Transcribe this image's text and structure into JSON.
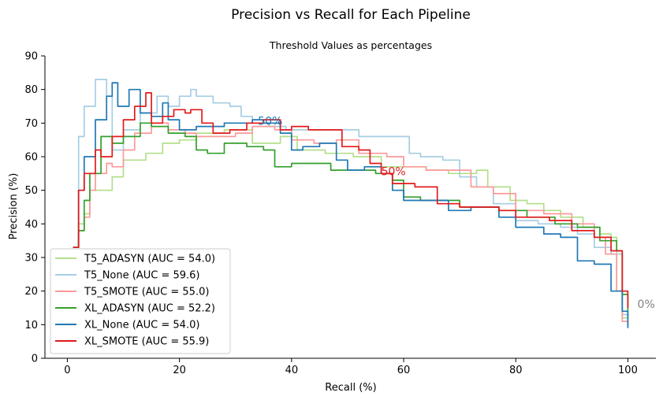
{
  "chart_data": {
    "type": "line",
    "title": "Precision vs Recall for Each Pipeline",
    "subtitle": "Threshold Values as percentages",
    "xlabel": "Recall (%)",
    "ylabel": "Precision (%)",
    "xlim": [
      -4,
      105
    ],
    "ylim": [
      0,
      90
    ],
    "xticks": [
      0,
      20,
      40,
      60,
      80,
      100
    ],
    "yticks": [
      0,
      10,
      20,
      30,
      40,
      50,
      60,
      70,
      80,
      90
    ],
    "legend_position": "lower-left",
    "series": [
      {
        "name": "T5_ADASYN",
        "legend": "T5_ADASYN (AUC = 54.0)",
        "color": "#b2df8a",
        "x": [
          1,
          2,
          3,
          4,
          6,
          8,
          10,
          14,
          17,
          20,
          23,
          28,
          33,
          38,
          41,
          46,
          51,
          56,
          60,
          64,
          68,
          73,
          75,
          79,
          82,
          85,
          88,
          92,
          95,
          97,
          98,
          99,
          100
        ],
        "y": [
          33,
          40,
          43,
          50,
          50,
          54,
          59,
          61,
          64,
          65,
          67,
          68,
          64,
          66,
          62,
          61,
          60,
          57,
          57,
          56,
          55,
          56,
          51,
          47,
          46,
          44,
          42,
          39,
          37,
          36,
          20,
          12,
          10
        ]
      },
      {
        "name": "T5_None",
        "legend": "T5_None (AUC = 59.6)",
        "color": "#a6cee3",
        "x": [
          1,
          2,
          3,
          5,
          7,
          8,
          10,
          13,
          16,
          18,
          20,
          22,
          23,
          26,
          29,
          31,
          33,
          36,
          39,
          43,
          48,
          52,
          58,
          61,
          63,
          67,
          70,
          73,
          76,
          80,
          84,
          88,
          91,
          94,
          97,
          99,
          100
        ],
        "y": [
          33,
          66,
          75,
          83,
          78,
          62,
          68,
          73,
          78,
          75,
          78,
          80,
          78,
          76,
          75,
          72,
          70,
          69,
          68,
          68,
          68,
          66,
          66,
          61,
          60,
          59,
          54,
          51,
          46,
          41,
          40,
          39,
          37,
          33,
          31,
          13,
          10
        ]
      },
      {
        "name": "T5_SMOTE",
        "legend": "T5_SMOTE (AUC = 55.0)",
        "color": "#fb9a99",
        "x": [
          1,
          2,
          3,
          4,
          5,
          7,
          8,
          10,
          12,
          15,
          18,
          21,
          23,
          26,
          30,
          33,
          37,
          40,
          44,
          48,
          52,
          57,
          60,
          64,
          68,
          72,
          76,
          80,
          85,
          90,
          94,
          96,
          98,
          99,
          100
        ],
        "y": [
          33,
          38,
          42,
          50,
          55,
          58,
          57,
          62,
          67,
          70,
          68,
          67,
          66,
          66,
          67,
          69,
          68,
          65,
          64,
          65,
          61,
          60,
          57,
          56,
          56,
          51,
          49,
          44,
          43,
          40,
          36,
          31,
          20,
          11,
          9
        ]
      },
      {
        "name": "XL_ADASYN",
        "legend": "XL_ADASYN (AUC = 52.2)",
        "color": "#33a02c",
        "x": [
          1,
          2,
          3,
          4,
          6,
          8,
          10,
          13,
          15,
          18,
          21,
          23,
          25,
          28,
          32,
          35,
          37,
          40,
          44,
          47,
          51,
          55,
          58,
          60,
          63,
          67,
          70,
          73,
          77,
          82,
          87,
          91,
          95,
          98,
          99,
          100
        ],
        "y": [
          33,
          38,
          47,
          55,
          66,
          64,
          66,
          70,
          69,
          67,
          66,
          62,
          61,
          64,
          63,
          62,
          57,
          58,
          58,
          56,
          56,
          55,
          53,
          48,
          47,
          47,
          45,
          45,
          44,
          42,
          40,
          39,
          35,
          32,
          19,
          12
        ]
      },
      {
        "name": "XL_None",
        "legend": "XL_None (AUC = 54.0)",
        "color": "#1f78b4",
        "x": [
          1,
          2,
          3,
          5,
          7,
          8,
          9,
          11,
          13,
          15,
          17,
          18,
          20,
          23,
          25,
          28,
          33,
          35,
          38,
          40,
          42,
          45,
          48,
          50,
          53,
          56,
          58,
          60,
          63,
          68,
          72,
          77,
          80,
          85,
          88,
          91,
          94,
          97,
          99,
          100
        ],
        "y": [
          33,
          50,
          60,
          71,
          78,
          82,
          75,
          80,
          73,
          72,
          76,
          71,
          68,
          69,
          69,
          70,
          71,
          70,
          67,
          62,
          63,
          64,
          59,
          56,
          57,
          55,
          50,
          47,
          47,
          44,
          45,
          42,
          39,
          37,
          36,
          29,
          28,
          20,
          14,
          9
        ]
      },
      {
        "name": "XL_SMOTE",
        "legend": "XL_SMOTE (AUC = 55.9)",
        "color": "#e31a1c",
        "x": [
          1,
          2,
          3,
          5,
          6,
          8,
          10,
          12,
          14,
          15,
          17,
          19,
          21,
          22,
          24,
          26,
          29,
          32,
          35,
          38,
          40,
          43,
          46,
          49,
          52,
          54,
          56,
          58,
          62,
          66,
          70,
          74,
          77,
          80,
          86,
          90,
          94,
          97,
          99,
          100
        ],
        "y": [
          33,
          50,
          55,
          62,
          60,
          66,
          71,
          75,
          79,
          70,
          72,
          74,
          73,
          74,
          70,
          67,
          68,
          70,
          71,
          68,
          69,
          68,
          68,
          63,
          62,
          58,
          55,
          52,
          51,
          46,
          45,
          45,
          44,
          42,
          41,
          38,
          36,
          32,
          20,
          15
        ]
      }
    ],
    "annotations": [
      {
        "text": "50%",
        "x": 34,
        "y": 69.5,
        "color": "#1f78b4"
      },
      {
        "text": "50%",
        "x": 56,
        "y": 54.5,
        "color": "#e31a1c"
      },
      {
        "text": "0%",
        "x": 101.7,
        "y": 15,
        "color": "#808080"
      }
    ]
  }
}
